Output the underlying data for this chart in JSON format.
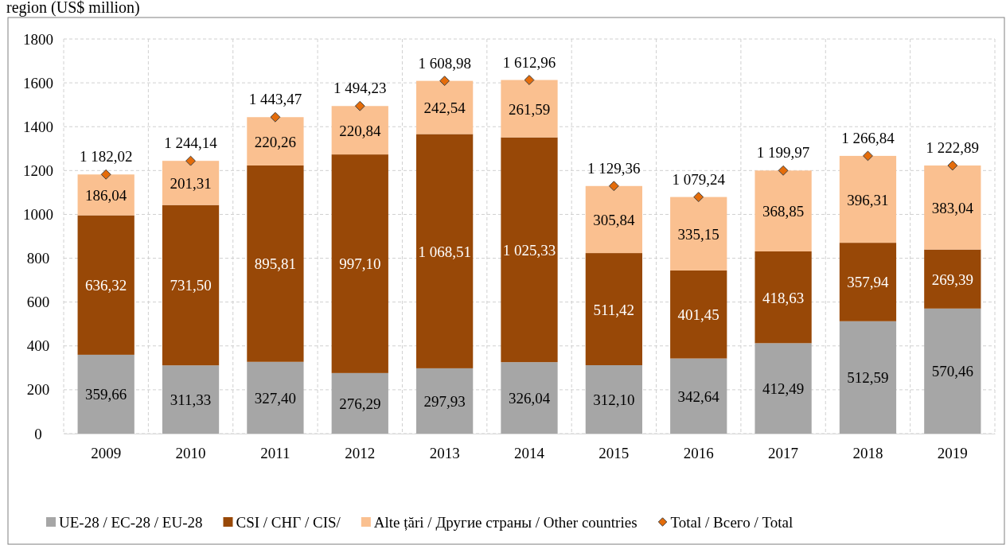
{
  "chart_data": {
    "type": "bar",
    "title": "region (US$ million)",
    "stacked": true,
    "grid": true,
    "legend": "bottom",
    "categories": [
      "2009",
      "2010",
      "2011",
      "2012",
      "2013",
      "2014",
      "2015",
      "2016",
      "2017",
      "2018",
      "2019"
    ],
    "ylim": [
      0,
      1800
    ],
    "yticks": [
      0,
      200,
      400,
      600,
      800,
      1000,
      1200,
      1400,
      1600,
      1800
    ],
    "series": [
      {
        "name": "UE-28 / ЕС-28 / EU-28",
        "color": "#a6a6a6",
        "values": [
          359.66,
          311.33,
          327.4,
          276.29,
          297.93,
          326.04,
          312.1,
          342.64,
          412.49,
          512.59,
          570.46
        ],
        "value_labels": [
          "359,66",
          "311,33",
          "327,40",
          "276,29",
          "297,93",
          "326,04",
          "312,10",
          "342,64",
          "412,49",
          "512,59",
          "570,46"
        ]
      },
      {
        "name": "CSI / СНГ / CIS/",
        "color": "#984807",
        "values": [
          636.32,
          731.5,
          895.81,
          997.1,
          1068.51,
          1025.33,
          511.42,
          401.45,
          418.63,
          357.94,
          269.39
        ],
        "value_labels": [
          "636,32",
          "731,50",
          "895,81",
          "997,10",
          "1 068,51",
          "1 025,33",
          "511,42",
          "401,45",
          "418,63",
          "357,94",
          "269,39"
        ]
      },
      {
        "name": "Alte țări / Другие страны / Other countries",
        "color": "#fac090",
        "values": [
          186.04,
          201.31,
          220.26,
          220.84,
          242.54,
          261.59,
          305.84,
          335.15,
          368.85,
          396.31,
          383.04
        ],
        "value_labels": [
          "186,04",
          "201,31",
          "220,26",
          "220,84",
          "242,54",
          "261,59",
          "305,84",
          "335,15",
          "368,85",
          "396,31",
          "383,04"
        ]
      },
      {
        "name": "Total / Всего / Total",
        "type": "scatter",
        "marker": "diamond",
        "color": "#e46c0a",
        "values": [
          1182.02,
          1244.14,
          1443.47,
          1494.23,
          1608.98,
          1612.96,
          1129.36,
          1079.24,
          1199.97,
          1266.84,
          1222.89
        ],
        "value_labels": [
          "1 182,02",
          "1 244,14",
          "1 443,47",
          "1 494,23",
          "1 608,98",
          "1 612,96",
          "1 129,36",
          "1 079,24",
          "1 199,97",
          "1 266,84",
          "1 222,89"
        ]
      }
    ]
  }
}
